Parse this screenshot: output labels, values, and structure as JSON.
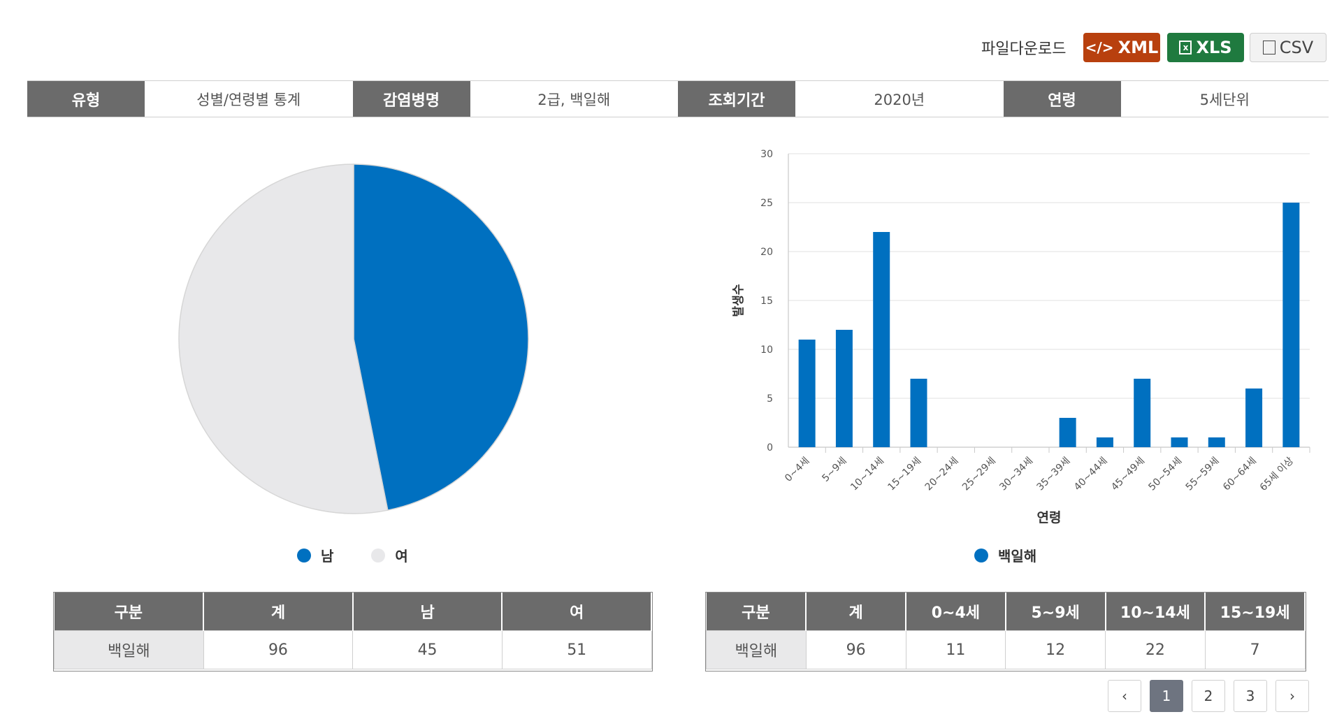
{
  "download": {
    "label": "파일다운로드",
    "xml": "XML",
    "xls": "XLS",
    "csv": "CSV"
  },
  "filters": [
    {
      "label": "유형",
      "value": "성별/연령별 통계"
    },
    {
      "label": "감염병명",
      "value": "2급, 백일해"
    },
    {
      "label": "조회기간",
      "value": "2020년"
    },
    {
      "label": "연령",
      "value": "5세단위"
    }
  ],
  "colors": {
    "male": "#0070c0",
    "female": "#e8e8ea",
    "bar": "#0070c0",
    "header": "#6b6b6b"
  },
  "chart_data": [
    {
      "type": "pie",
      "categories": [
        "남",
        "여"
      ],
      "values": [
        45,
        51
      ],
      "legend": [
        "남",
        "여"
      ],
      "legend_position": "bottom"
    },
    {
      "type": "bar",
      "categories": [
        "0~4세",
        "5~9세",
        "10~14세",
        "15~19세",
        "20~24세",
        "25~29세",
        "30~34세",
        "35~39세",
        "40~44세",
        "45~49세",
        "50~54세",
        "55~59세",
        "60~64세",
        "65세 이상"
      ],
      "series": [
        {
          "name": "백일해",
          "values": [
            11,
            12,
            22,
            7,
            0,
            0,
            0,
            3,
            1,
            7,
            1,
            1,
            6,
            25
          ]
        }
      ],
      "xlabel": "연령",
      "ylabel": "발생수",
      "ylim": [
        0,
        30
      ],
      "yticks": [
        0,
        5,
        10,
        15,
        20,
        25,
        30
      ],
      "grid": true,
      "legend_position": "bottom"
    }
  ],
  "table_sex": {
    "headers": [
      "구분",
      "계",
      "남",
      "여"
    ],
    "row": [
      "백일해",
      "96",
      "45",
      "51"
    ]
  },
  "table_age": {
    "headers": [
      "구분",
      "계",
      "0~4세",
      "5~9세",
      "10~14세",
      "15~19세"
    ],
    "row": [
      "백일해",
      "96",
      "11",
      "12",
      "22",
      "7"
    ]
  },
  "pagination": {
    "prev": "‹",
    "pages": [
      "1",
      "2",
      "3"
    ],
    "current": "1",
    "next": "›"
  }
}
